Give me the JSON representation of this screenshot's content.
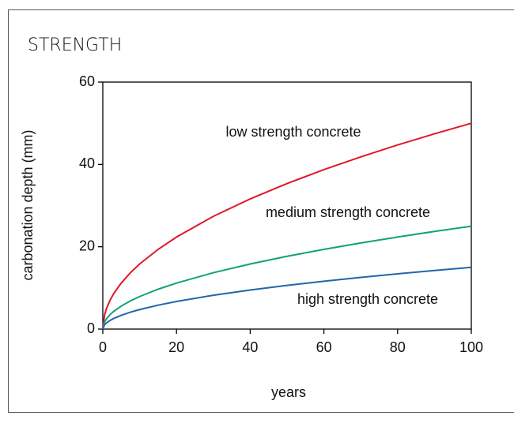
{
  "chart_data": {
    "type": "line",
    "title": "STRENGTH",
    "x_label": "years",
    "y_label": "carbonation depth (mm)",
    "x": [
      0,
      0.5,
      1,
      2,
      3,
      5,
      7.5,
      10,
      15,
      20,
      30,
      40,
      50,
      60,
      70,
      80,
      90,
      100
    ],
    "series": [
      {
        "name": "low strength concrete",
        "color": "#e0182d",
        "values": [
          0,
          3.54,
          5,
          7.07,
          8.66,
          11.18,
          13.69,
          15.81,
          19.36,
          22.36,
          27.39,
          31.62,
          35.36,
          38.73,
          41.83,
          44.72,
          47.43,
          50
        ]
      },
      {
        "name": "medium strength concrete",
        "color": "#13a07c",
        "values": [
          0,
          1.77,
          2.5,
          3.54,
          4.33,
          5.59,
          6.85,
          7.91,
          9.68,
          11.18,
          13.69,
          15.81,
          17.68,
          19.36,
          20.92,
          22.36,
          23.72,
          25
        ]
      },
      {
        "name": "high strength concrete",
        "color": "#1f67a8",
        "values": [
          0,
          1.06,
          1.5,
          2.12,
          2.6,
          3.35,
          4.11,
          4.74,
          5.81,
          6.71,
          8.22,
          9.49,
          10.61,
          11.62,
          12.55,
          13.42,
          14.23,
          15
        ]
      }
    ],
    "xlim": [
      0,
      100
    ],
    "xticks": [
      0,
      20,
      40,
      60,
      80,
      100
    ],
    "ylim": [
      0,
      60
    ],
    "yticks": [
      0,
      20,
      40,
      60
    ],
    "grid": false
  }
}
